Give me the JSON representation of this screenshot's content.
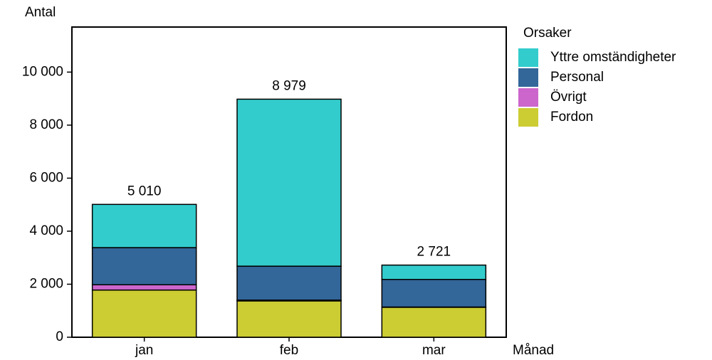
{
  "chart_data": {
    "type": "stacked-bar",
    "y_label": "Antal",
    "x_label": "Månad",
    "legend_title": "Orsaker",
    "categories": [
      "jan",
      "feb",
      "mar"
    ],
    "series": [
      {
        "name": "Fordon",
        "color": "#cccc33",
        "values": [
          1780,
          1370,
          1130
        ]
      },
      {
        "name": "Övrigt",
        "color": "#cc66cc",
        "values": [
          200,
          30,
          10
        ]
      },
      {
        "name": "Personal",
        "color": "#336699",
        "values": [
          1400,
          1280,
          1040
        ]
      },
      {
        "name": "Yttre omständigheter",
        "color": "#33cccc",
        "values": [
          1630,
          6299,
          541
        ]
      }
    ],
    "totals": {
      "values": [
        5010,
        8979,
        2721
      ],
      "value_labels": [
        "5 010",
        "8 979",
        "2 721"
      ]
    },
    "ylim": [
      0,
      11700
    ],
    "yticks": [
      0,
      {
        "value": 2000,
        "label": "2 000"
      },
      {
        "value": 4000,
        "label": "4 000"
      },
      {
        "value": 6000,
        "label": "6 000"
      },
      {
        "value": 8000,
        "label": "8 000"
      },
      {
        "value": 10000,
        "label": "10 000"
      }
    ],
    "legend_position": "right"
  }
}
